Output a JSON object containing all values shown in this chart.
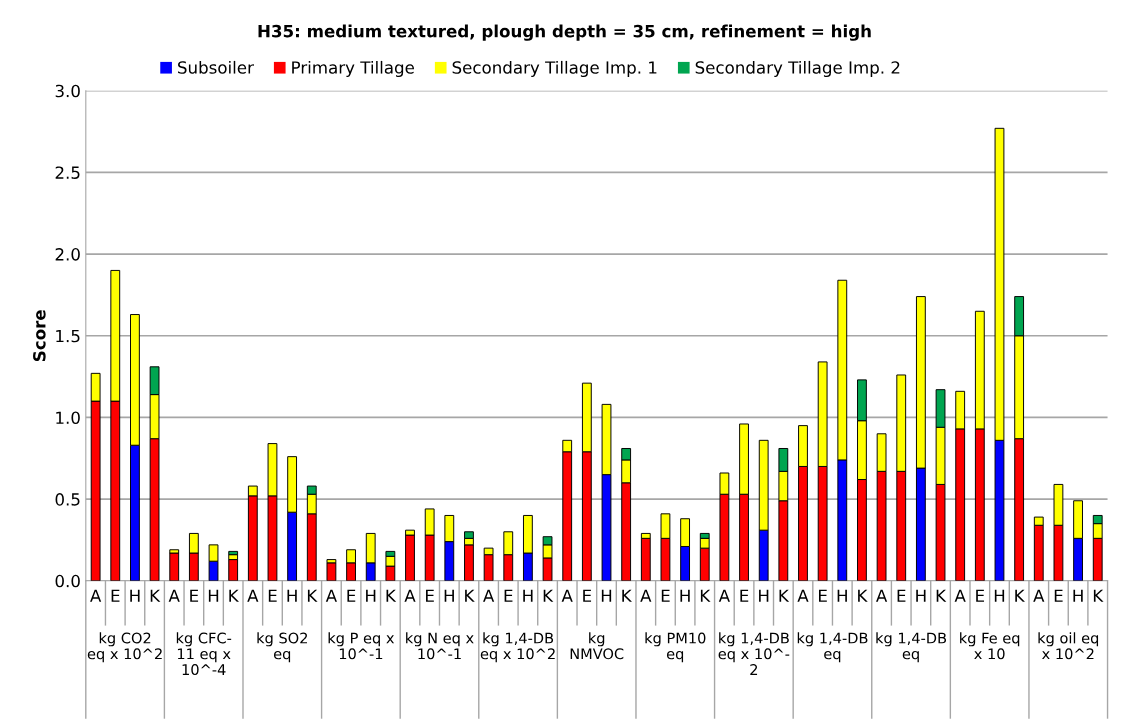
{
  "chart_data": {
    "type": "bar",
    "stacked": true,
    "title": "H35: medium textured, plough depth = 35 cm, refinement = high",
    "ylabel": "Score",
    "categories": [
      "A",
      "E",
      "H",
      "K",
      "A",
      "E",
      "H",
      "K",
      "A",
      "E",
      "H",
      "K",
      "A",
      "E",
      "H",
      "K",
      "A",
      "E",
      "H",
      "K",
      "A",
      "E",
      "H",
      "K",
      "A",
      "E",
      "H",
      "K",
      "A",
      "E",
      "H",
      "K",
      "A",
      "E",
      "H",
      "K",
      "A",
      "E",
      "H",
      "K",
      "A",
      "E",
      "H",
      "K",
      "A",
      "E",
      "H",
      "K",
      "A",
      "E",
      "H",
      "K"
    ],
    "annotations": [
      "kg CO2\neq x 10^2",
      "kg CFC-\n11 eq x\n10^-4",
      "kg SO2\neq",
      "kg P eq x\n10^-1",
      "kg N eq x\n10^-1",
      "kg 1,4-DB\neq x 10^2",
      "kg\nNMVOC",
      "kg PM10\neq",
      "kg 1,4-DB\neq x 10^-\n2",
      "kg 1,4-DB\neq",
      "kg 1,4-DB\neq",
      "kg Fe eq\nx 10",
      "kg oil eq\nx 10^2"
    ],
    "series": [
      {
        "name": "Subsoiler",
        "color": "#0000ff",
        "values": [
          null,
          null,
          0.83,
          null,
          null,
          null,
          0.12,
          null,
          null,
          null,
          0.42,
          null,
          null,
          null,
          0.11,
          null,
          null,
          null,
          0.24,
          null,
          null,
          null,
          0.17,
          null,
          null,
          null,
          0.65,
          null,
          null,
          null,
          0.21,
          null,
          null,
          null,
          0.31,
          null,
          null,
          null,
          0.74,
          null,
          null,
          null,
          0.69,
          null,
          null,
          null,
          0.86,
          null,
          null,
          null,
          0.26,
          null
        ]
      },
      {
        "name": "Primary Tillage",
        "color": "#ff0000",
        "values": [
          1.1,
          1.1,
          null,
          0.87,
          0.17,
          0.17,
          null,
          0.13,
          0.52,
          0.52,
          null,
          0.41,
          0.11,
          0.11,
          null,
          0.09,
          0.28,
          0.28,
          null,
          0.22,
          0.16,
          0.16,
          null,
          0.14,
          0.79,
          0.79,
          null,
          0.6,
          0.26,
          0.26,
          null,
          0.2,
          0.53,
          0.53,
          null,
          0.49,
          0.7,
          0.7,
          null,
          0.62,
          0.67,
          0.67,
          null,
          0.59,
          0.93,
          0.93,
          null,
          0.87,
          0.34,
          0.34,
          null,
          0.26
        ]
      },
      {
        "name": "Secondary Tillage Imp. 1",
        "color": "#ffff00",
        "values": [
          0.17,
          0.8,
          0.8,
          0.27,
          0.02,
          0.12,
          0.1,
          0.03,
          0.06,
          0.32,
          0.34,
          0.12,
          0.02,
          0.08,
          0.18,
          0.06,
          0.03,
          0.16,
          0.16,
          0.04,
          0.04,
          0.14,
          0.23,
          0.08,
          0.07,
          0.42,
          0.43,
          0.14,
          0.03,
          0.15,
          0.17,
          0.06,
          0.13,
          0.43,
          0.55,
          0.18,
          0.25,
          0.64,
          1.1,
          0.36,
          0.23,
          0.59,
          1.05,
          0.35,
          0.23,
          0.72,
          1.91,
          0.63,
          0.05,
          0.25,
          0.23,
          0.09
        ]
      },
      {
        "name": "Secondary Tillage Imp. 2",
        "color": "#00a550",
        "values": [
          null,
          null,
          null,
          0.17,
          null,
          null,
          null,
          0.02,
          null,
          null,
          null,
          0.05,
          null,
          null,
          null,
          0.03,
          null,
          null,
          null,
          0.04,
          null,
          null,
          null,
          0.05,
          null,
          null,
          null,
          0.07,
          null,
          null,
          null,
          0.03,
          null,
          null,
          null,
          0.14,
          null,
          null,
          null,
          0.25,
          null,
          null,
          null,
          0.23,
          null,
          null,
          null,
          0.24,
          null,
          null,
          null,
          0.05
        ]
      }
    ],
    "ylim": [
      0,
      3.0
    ],
    "yticks": [
      {
        "value": 0,
        "label": "0.0"
      },
      {
        "value": 0.5,
        "label": "0.5"
      },
      {
        "value": 1.0,
        "label": "1.0"
      },
      {
        "value": 1.5,
        "label": "1.5"
      },
      {
        "value": 2.0,
        "label": "2.0"
      },
      {
        "value": 2.5,
        "label": "2.5"
      },
      {
        "value": 3.0,
        "label": "3.0"
      }
    ],
    "grid": "y",
    "legend": "top"
  }
}
